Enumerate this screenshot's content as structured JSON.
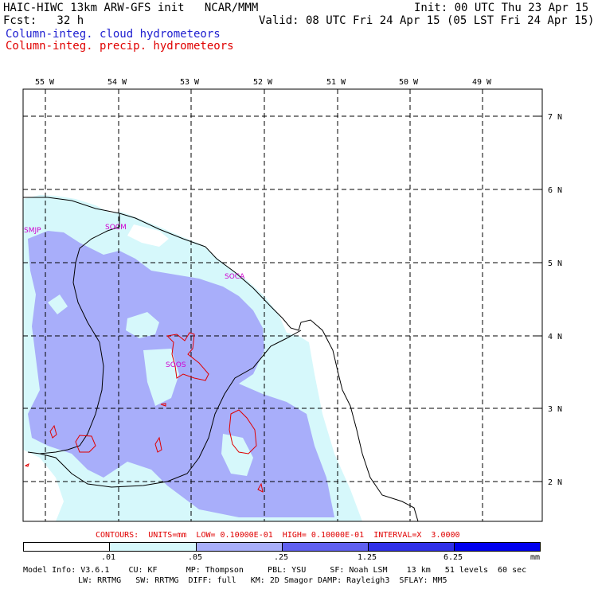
{
  "header": {
    "title_line": "HAIC-HIWC 13km ARW-GFS init   NCAR/MMM",
    "init": "Init: 00 UTC Thu 23 Apr 15",
    "fcst": "Fcst:   32 h",
    "valid": "Valid: 08 UTC Fri 24 Apr 15 (05 LST Fri 24 Apr 15)",
    "field1": "Column-integ. cloud hydrometeors",
    "field2": "Column-integ. precip. hydrometeors"
  },
  "colors": {
    "field1": "#2020d0",
    "field2": "#e00000",
    "shade_light": "#d6f8fb",
    "shade_mid": "#a8aefa",
    "shade_dark": "#6060f0",
    "shade_darker": "#3030e8",
    "shade_darkest": "#0000ee"
  },
  "map": {
    "lon_labels": [
      "55 W",
      "54 W",
      "53 W",
      "52 W",
      "51 W",
      "50 W",
      "49 W"
    ],
    "lat_labels": [
      "7 N",
      "6 N",
      "5 N",
      "4 N",
      "3 N",
      "2 N"
    ],
    "stations": [
      "SMJP",
      "SOCM",
      "SOCA",
      "SOOS"
    ]
  },
  "contours_line": "CONTOURS:  UNITS=mm  LOW= 0.10000E-01  HIGH= 0.10000E-01  INTERVAL=X  3.0000",
  "colorbar": {
    "ticks": [
      ".01",
      ".05",
      ".25",
      "1.25",
      "6.25"
    ],
    "units": "mm"
  },
  "model_info": {
    "line1": "Model Info: V3.6.1    CU: KF      MP: Thompson     PBL: YSU     SF: Noah LSM    13 km   51 levels  60 sec",
    "line2": "LW: RRTMG   SW: RRTMG  DIFF: full   KM: 2D Smagor DAMP: Rayleigh3  SFLAY: MM5"
  }
}
